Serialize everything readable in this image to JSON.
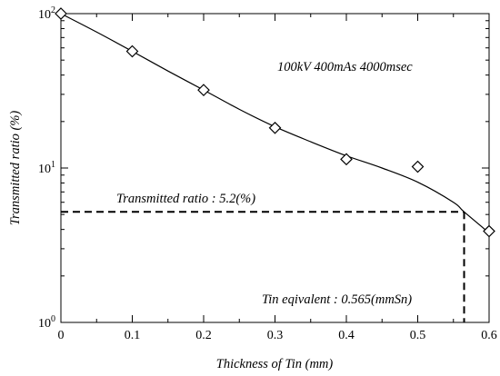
{
  "chart_data": {
    "type": "scatter",
    "title": "",
    "xlabel": "Thickness of Tin (mm)",
    "ylabel": "Transmitted ratio (%)",
    "xlim": [
      0,
      0.6
    ],
    "ylim": [
      1,
      100
    ],
    "y_scale": "log",
    "grid": false,
    "x_ticks": [
      0,
      0.1,
      0.2,
      0.3,
      0.4,
      0.5,
      0.6
    ],
    "x_tick_labels": [
      "0",
      "0.1",
      "0.2",
      "0.3",
      "0.4",
      "0.5",
      "0.6"
    ],
    "y_ticks": [
      1,
      10,
      100
    ],
    "y_tick_labels": [
      {
        "base": "10",
        "exp": "0"
      },
      {
        "base": "10",
        "exp": "1"
      },
      {
        "base": "10",
        "exp": "2"
      }
    ],
    "series": [
      {
        "marker": "diamond",
        "x": [
          0,
          0.1,
          0.2,
          0.3,
          0.4,
          0.5,
          0.6
        ],
        "y": [
          100,
          57,
          32,
          18.2,
          11.4,
          10.2,
          3.9
        ]
      }
    ],
    "fit_curve": {
      "x": [
        0,
        0.05,
        0.1,
        0.15,
        0.2,
        0.25,
        0.3,
        0.35,
        0.4,
        0.45,
        0.5,
        0.55,
        0.565,
        0.6
      ],
      "y": [
        100,
        76,
        57,
        42.5,
        32,
        24,
        18.5,
        14.8,
        12,
        10,
        8.1,
        6.0,
        5.2,
        3.8
      ]
    },
    "reference_lines": {
      "transmitted_ratio": 5.2,
      "tin_equivalent": 0.565
    },
    "annotations": {
      "condition": "100kV 400mAs 4000msec",
      "transmitted": "Transmitted ratio : 5.2(%)",
      "tin_equivalent": "Tin eqivalent : 0.565(mmSn)"
    }
  }
}
